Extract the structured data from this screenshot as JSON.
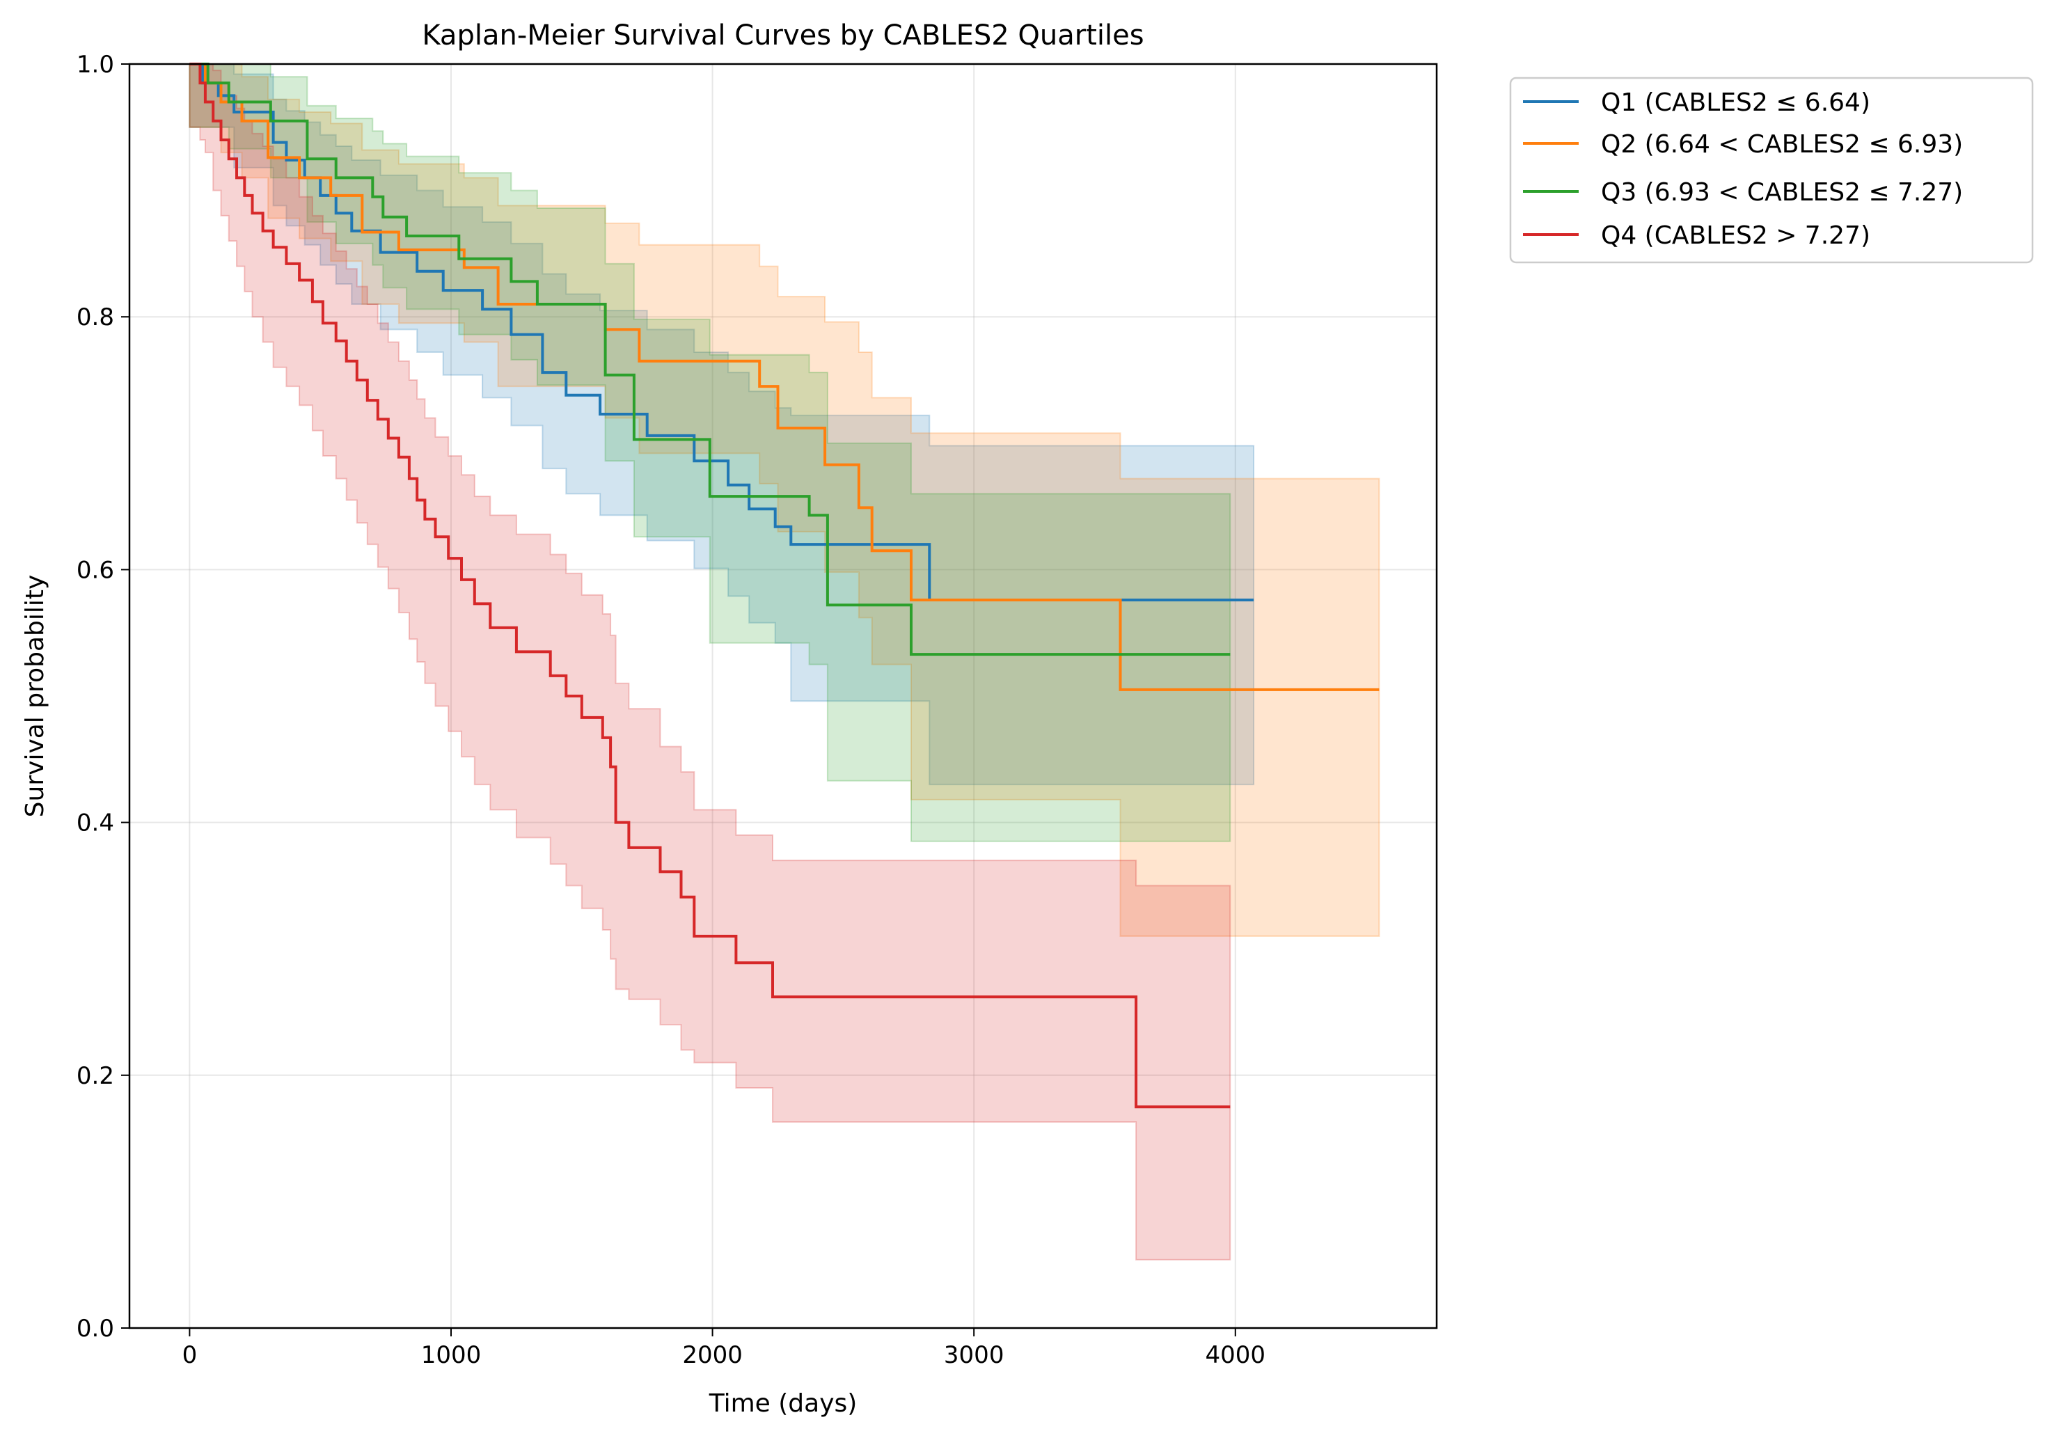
{
  "chart_data": {
    "type": "line",
    "subtype": "kaplan-meier step curves with confidence bands",
    "title": "Kaplan-Meier Survival Curves by CABLES2 Quartiles",
    "xlabel": "Time (days)",
    "ylabel": "Survival probability",
    "xlim": [
      -230,
      4770
    ],
    "ylim": [
      0.0,
      1.0
    ],
    "xticks": [
      0,
      1000,
      2000,
      3000,
      4000
    ],
    "xtick_labels": [
      "0",
      "1000",
      "2000",
      "3000",
      "4000"
    ],
    "yticks": [
      0.0,
      0.2,
      0.4,
      0.6,
      0.8,
      1.0
    ],
    "ytick_labels": [
      "0.0",
      "0.2",
      "0.4",
      "0.6",
      "0.8",
      "1.0"
    ],
    "grid": true,
    "legend_position": "outside upper right",
    "series": [
      {
        "name": "Q1 (CABLES2 ≤ 6.64)",
        "color": "#1f77b4",
        "x": [
          0,
          50,
          110,
          170,
          320,
          370,
          440,
          500,
          560,
          620,
          730,
          870,
          970,
          1120,
          1230,
          1350,
          1440,
          1570,
          1750,
          1930,
          2060,
          2140,
          2240,
          2300,
          2830,
          4070
        ],
        "survival": [
          1.0,
          0.985,
          0.975,
          0.962,
          0.938,
          0.924,
          0.91,
          0.896,
          0.882,
          0.868,
          0.851,
          0.836,
          0.821,
          0.806,
          0.786,
          0.756,
          0.738,
          0.723,
          0.706,
          0.686,
          0.667,
          0.648,
          0.634,
          0.62,
          0.576,
          0.576
        ],
        "ci_lower": [
          0.95,
          0.95,
          0.95,
          0.918,
          0.888,
          0.872,
          0.857,
          0.841,
          0.826,
          0.81,
          0.79,
          0.772,
          0.754,
          0.736,
          0.714,
          0.68,
          0.66,
          0.643,
          0.623,
          0.601,
          0.579,
          0.558,
          0.542,
          0.496,
          0.43,
          0.43
        ],
        "ci_upper": [
          1.0,
          1.0,
          1.0,
          0.992,
          0.972,
          0.963,
          0.954,
          0.944,
          0.935,
          0.924,
          0.912,
          0.9,
          0.887,
          0.875,
          0.858,
          0.834,
          0.818,
          0.805,
          0.79,
          0.772,
          0.756,
          0.741,
          0.728,
          0.722,
          0.698,
          0.698
        ]
      },
      {
        "name": "Q2 (6.64 < CABLES2 ≤ 6.93)",
        "color": "#ff7f0e",
        "x": [
          0,
          60,
          120,
          200,
          300,
          420,
          540,
          660,
          800,
          1050,
          1180,
          1590,
          1720,
          2180,
          2250,
          2430,
          2560,
          2610,
          2760,
          3560,
          4550
        ],
        "survival": [
          1.0,
          0.985,
          0.97,
          0.955,
          0.926,
          0.91,
          0.896,
          0.867,
          0.853,
          0.839,
          0.81,
          0.79,
          0.765,
          0.745,
          0.712,
          0.683,
          0.649,
          0.615,
          0.576,
          0.505,
          0.505
        ],
        "ci_lower": [
          0.95,
          0.95,
          0.93,
          0.91,
          0.878,
          0.862,
          0.844,
          0.81,
          0.795,
          0.78,
          0.745,
          0.72,
          0.692,
          0.668,
          0.63,
          0.598,
          0.562,
          0.525,
          0.418,
          0.31,
          0.31
        ],
        "ci_upper": [
          1.0,
          1.0,
          1.0,
          0.99,
          0.972,
          0.962,
          0.953,
          0.932,
          0.921,
          0.91,
          0.888,
          0.874,
          0.857,
          0.84,
          0.816,
          0.796,
          0.772,
          0.736,
          0.708,
          0.672,
          0.672
        ]
      },
      {
        "name": "Q3 (6.93 < CABLES2 ≤ 7.27)",
        "color": "#2ca02c",
        "x": [
          0,
          70,
          150,
          310,
          450,
          560,
          700,
          740,
          830,
          1030,
          1230,
          1330,
          1590,
          1700,
          1990,
          2370,
          2440,
          2760,
          3980
        ],
        "survival": [
          1.0,
          0.985,
          0.97,
          0.955,
          0.925,
          0.91,
          0.895,
          0.879,
          0.864,
          0.846,
          0.828,
          0.81,
          0.754,
          0.703,
          0.658,
          0.643,
          0.572,
          0.533,
          0.533
        ],
        "ci_lower": [
          0.95,
          0.95,
          0.933,
          0.91,
          0.875,
          0.858,
          0.841,
          0.823,
          0.806,
          0.786,
          0.766,
          0.746,
          0.686,
          0.626,
          0.542,
          0.525,
          0.433,
          0.385,
          0.385
        ],
        "ci_upper": [
          1.0,
          1.0,
          1.0,
          0.99,
          0.967,
          0.957,
          0.947,
          0.937,
          0.927,
          0.914,
          0.9,
          0.886,
          0.842,
          0.798,
          0.77,
          0.756,
          0.7,
          0.66,
          0.66
        ]
      },
      {
        "name": "Q4 (CABLES2 > 7.27)",
        "color": "#d62728",
        "x": [
          0,
          40,
          60,
          90,
          120,
          150,
          180,
          210,
          240,
          280,
          320,
          370,
          420,
          470,
          510,
          560,
          600,
          640,
          680,
          720,
          760,
          800,
          840,
          870,
          900,
          940,
          990,
          1040,
          1090,
          1150,
          1250,
          1380,
          1440,
          1500,
          1580,
          1610,
          1630,
          1680,
          1800,
          1880,
          1930,
          2090,
          2230,
          3620,
          3980
        ],
        "survival": [
          1.0,
          0.985,
          0.97,
          0.955,
          0.94,
          0.925,
          0.91,
          0.896,
          0.882,
          0.868,
          0.855,
          0.842,
          0.829,
          0.812,
          0.795,
          0.781,
          0.765,
          0.75,
          0.734,
          0.719,
          0.704,
          0.689,
          0.672,
          0.655,
          0.64,
          0.626,
          0.609,
          0.592,
          0.573,
          0.554,
          0.535,
          0.516,
          0.5,
          0.483,
          0.467,
          0.444,
          0.4,
          0.38,
          0.361,
          0.341,
          0.31,
          0.289,
          0.262,
          0.175,
          0.175
        ],
        "ci_lower": [
          0.95,
          0.94,
          0.93,
          0.9,
          0.88,
          0.86,
          0.84,
          0.82,
          0.8,
          0.78,
          0.76,
          0.745,
          0.73,
          0.71,
          0.69,
          0.672,
          0.655,
          0.637,
          0.62,
          0.602,
          0.585,
          0.566,
          0.545,
          0.527,
          0.51,
          0.492,
          0.472,
          0.452,
          0.43,
          0.41,
          0.388,
          0.367,
          0.35,
          0.332,
          0.315,
          0.292,
          0.268,
          0.26,
          0.24,
          0.22,
          0.21,
          0.19,
          0.163,
          0.054,
          0.054
        ],
        "ci_upper": [
          1.0,
          1.0,
          1.0,
          0.995,
          0.985,
          0.975,
          0.965,
          0.955,
          0.945,
          0.935,
          0.925,
          0.91,
          0.895,
          0.88,
          0.866,
          0.852,
          0.838,
          0.824,
          0.81,
          0.795,
          0.78,
          0.765,
          0.75,
          0.735,
          0.72,
          0.705,
          0.69,
          0.675,
          0.658,
          0.643,
          0.628,
          0.612,
          0.597,
          0.58,
          0.565,
          0.548,
          0.51,
          0.49,
          0.46,
          0.44,
          0.41,
          0.39,
          0.37,
          0.35,
          0.35
        ]
      }
    ]
  }
}
